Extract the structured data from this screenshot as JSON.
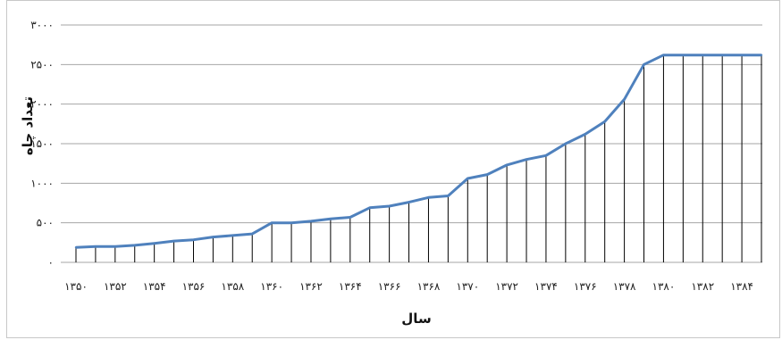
{
  "chart_data": {
    "type": "area",
    "title": "",
    "xlabel": "سال",
    "ylabel": "تعداد چاه",
    "ylim": [
      0,
      3000
    ],
    "yticks": [
      0,
      500,
      1000,
      1500,
      2000,
      2500,
      3000
    ],
    "ytick_labels": [
      "۰",
      "۵۰۰",
      "۱۰۰۰",
      "۱۵۰۰",
      "۲۰۰۰",
      "۲۵۰۰",
      "۳۰۰۰"
    ],
    "grid": "horizontal",
    "line_color": "#4f81bd",
    "drop_line_color": "#000000",
    "x": [
      1350,
      1351,
      1352,
      1353,
      1354,
      1355,
      1356,
      1357,
      1358,
      1359,
      1360,
      1361,
      1362,
      1363,
      1364,
      1365,
      1366,
      1367,
      1368,
      1369,
      1370,
      1371,
      1372,
      1373,
      1374,
      1375,
      1376,
      1377,
      1378,
      1379,
      1380,
      1381,
      1382,
      1383,
      1384,
      1385
    ],
    "x_tick_labels": [
      "۱۳۵۰",
      "۱۳۵۲",
      "۱۳۵۴",
      "۱۳۵۶",
      "۱۳۵۸",
      "۱۳۶۰",
      "۱۳۶۲",
      "۱۳۶۴",
      "۱۳۶۶",
      "۱۳۶۸",
      "۱۳۷۰",
      "۱۳۷۲",
      "۱۳۷۴",
      "۱۳۷۶",
      "۱۳۷۸",
      "۱۳۸۰",
      "۱۳۸۲",
      "۱۳۸۴"
    ],
    "values": [
      190,
      200,
      200,
      215,
      240,
      270,
      285,
      320,
      340,
      360,
      500,
      500,
      520,
      550,
      570,
      690,
      710,
      760,
      820,
      840,
      1060,
      1110,
      1230,
      1300,
      1350,
      1500,
      1620,
      1780,
      2060,
      2500,
      2620,
      2620,
      2620,
      2620,
      2620,
      2620
    ]
  }
}
